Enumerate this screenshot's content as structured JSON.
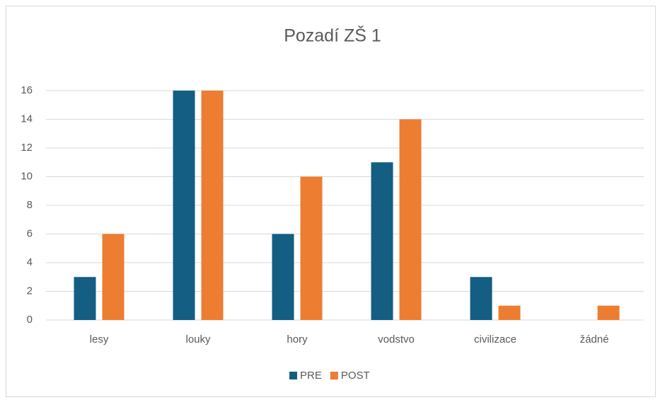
{
  "chart_data": {
    "type": "bar",
    "title": "Pozadí ZŠ 1",
    "categories": [
      "lesy",
      "louky",
      "hory",
      "vodstvo",
      "civilizace",
      "žádné"
    ],
    "series": [
      {
        "name": "PRE",
        "color": "#135e82",
        "values": [
          3,
          16,
          6,
          11,
          3,
          0
        ]
      },
      {
        "name": "POST",
        "color": "#ed7d31",
        "values": [
          6,
          16,
          10,
          14,
          1,
          1
        ]
      }
    ],
    "ylim": [
      0,
      16
    ],
    "yticks": [
      0,
      2,
      4,
      6,
      8,
      10,
      12,
      14,
      16
    ],
    "grid": true,
    "legend": "bottom"
  }
}
